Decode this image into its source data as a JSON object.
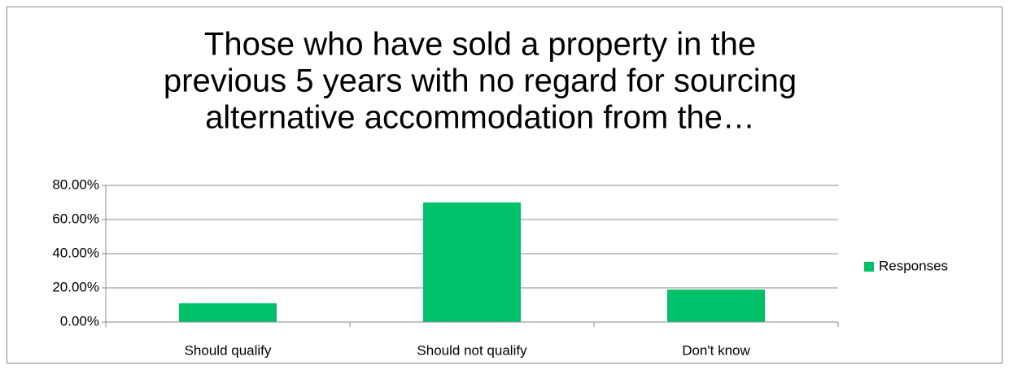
{
  "chart_data": {
    "type": "bar",
    "title": [
      "Those who have sold a property in the",
      "previous 5 years with no regard for sourcing",
      "alternative accommodation from the…"
    ],
    "categories": [
      "Should qualify",
      "Should not qualify",
      "Don't know"
    ],
    "series": [
      {
        "name": "Responses",
        "color": "#00c06a",
        "values": [
          11,
          70,
          19
        ]
      }
    ],
    "ylim": [
      0,
      80
    ],
    "yticks": [
      {
        "value": 0,
        "label": "0.00%"
      },
      {
        "value": 20,
        "label": "20.00%"
      },
      {
        "value": 40,
        "label": "40.00%"
      },
      {
        "value": 60,
        "label": "60.00%"
      },
      {
        "value": 80,
        "label": "80.00%"
      }
    ],
    "grid": true,
    "legend": "right"
  }
}
